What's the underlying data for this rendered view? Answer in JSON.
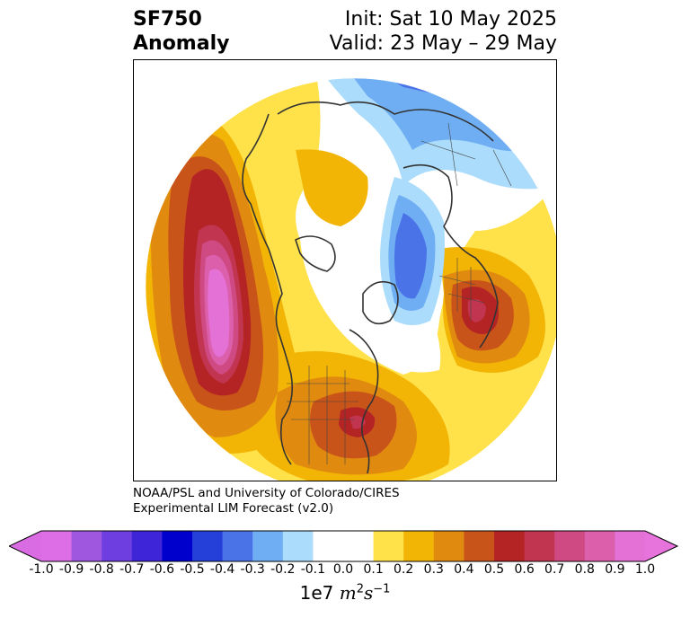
{
  "title": {
    "left_line1": "SF750",
    "left_line2": "Anomaly",
    "right_line1": "Init: Sat 10 May 2025",
    "right_line2": "Valid: 23 May – 29 May"
  },
  "credit": {
    "line1": "NOAA/PSL and University of Colorado/CIRES",
    "line2": "Experimental LIM Forecast (v2.0)"
  },
  "map": {
    "projection": "north-polar-stereographic",
    "field": "750 hPa streamfunction anomaly",
    "features": [
      {
        "name": "western-pacific-high-anomaly",
        "sign": "positive",
        "peak": 1.0
      },
      {
        "name": "central-us-high-anomaly",
        "sign": "positive",
        "peak": 0.6
      },
      {
        "name": "eastern-europe-high-anomaly",
        "sign": "positive",
        "peak": 0.6
      },
      {
        "name": "north-atlantic-low-anomaly",
        "sign": "negative",
        "peak": -0.5
      },
      {
        "name": "siberia-low-anomaly",
        "sign": "negative",
        "peak": -0.6
      }
    ]
  },
  "colorbar": {
    "levels": [
      -1.0,
      -0.9,
      -0.8,
      -0.7,
      -0.6,
      -0.5,
      -0.4,
      -0.3,
      -0.2,
      -0.1,
      0.0,
      0.1,
      0.2,
      0.3,
      0.4,
      0.5,
      0.6,
      0.7,
      0.8,
      0.9,
      1.0
    ],
    "tick_labels": [
      "-1.0",
      "-0.9",
      "-0.8",
      "-0.7",
      "-0.6",
      "-0.5",
      "-0.4",
      "-0.3",
      "-0.2",
      "-0.1",
      "0.0",
      "0.1",
      "0.2",
      "0.3",
      "0.4",
      "0.5",
      "0.6",
      "0.7",
      "0.8",
      "0.9",
      "1.0"
    ],
    "colors": [
      "#dd6ee6",
      "#a057e0",
      "#6e3ee0",
      "#3f25d8",
      "#0000cd",
      "#2540d8",
      "#4b73e8",
      "#6faef2",
      "#abdcfb",
      "#ffffff",
      "#ffffff",
      "#ffe14a",
      "#f3b505",
      "#e08b10",
      "#c9541a",
      "#b52424",
      "#c23551",
      "#cf4a82",
      "#db5fab",
      "#e471d6"
    ],
    "extend_min_color": "#d96be3",
    "extend_max_color": "#e773dc",
    "unit_prefix": "1e7",
    "unit_m": "m",
    "unit_m_exp": "2",
    "unit_s": "s",
    "unit_s_exp": "−1"
  }
}
